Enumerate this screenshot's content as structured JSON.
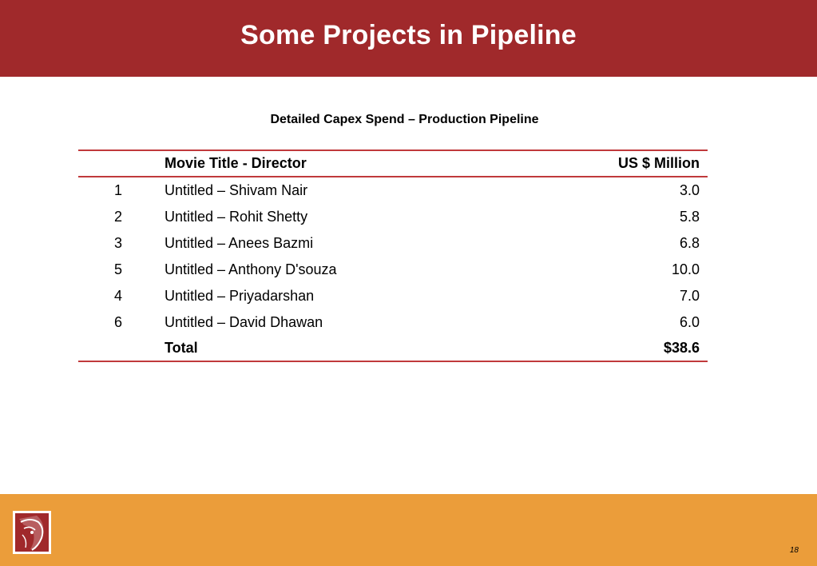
{
  "slide": {
    "title": "Some Projects in Pipeline",
    "page_number": "18"
  },
  "table": {
    "caption": "Detailed Capex Spend – Production Pipeline",
    "headers": {
      "number": "",
      "title": "Movie Title - Director",
      "amount": "US $ Million"
    },
    "rows": [
      {
        "number": "1",
        "title": "Untitled – Shivam Nair",
        "amount": "3.0"
      },
      {
        "number": "2",
        "title": "Untitled – Rohit Shetty",
        "amount": "5.8"
      },
      {
        "number": "3",
        "title": "Untitled – Anees Bazmi",
        "amount": "6.8"
      },
      {
        "number": "5",
        "title": "Untitled – Anthony D'souza",
        "amount": "10.0"
      },
      {
        "number": "4",
        "title": "Untitled – Priyadarshan",
        "amount": "7.0"
      },
      {
        "number": "6",
        "title": "Untitled – David Dhawan",
        "amount": "6.0"
      }
    ],
    "total": {
      "label": "Total",
      "amount": "$38.6"
    }
  },
  "colors": {
    "header_bar": "#a0292b",
    "rule": "#c0393b",
    "footer_bar": "#eb9d3a"
  },
  "icons": {
    "logo": "company-logo-icon"
  }
}
